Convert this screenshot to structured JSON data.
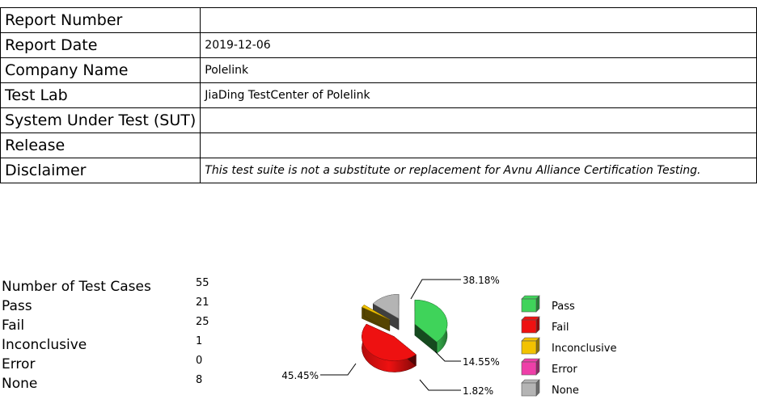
{
  "report_table": [
    {
      "label": "Report Number",
      "value": ""
    },
    {
      "label": "Report Date",
      "value": "2019-12-06"
    },
    {
      "label": "Company Name",
      "value": "Polelink"
    },
    {
      "label": "Test Lab",
      "value": "JiaDing TestCenter of Polelink"
    },
    {
      "label": "System Under Test (SUT)",
      "value": ""
    },
    {
      "label": "Release",
      "value": ""
    },
    {
      "label": "Disclaimer",
      "value": "This test suite is not a substitute or replacement for Avnu Alliance Certification Testing."
    }
  ],
  "summary": [
    {
      "label": "Number of Test Cases",
      "value": "55"
    },
    {
      "label": "Pass",
      "value": "21"
    },
    {
      "label": "Fail",
      "value": "25"
    },
    {
      "label": "Inconclusive",
      "value": "1"
    },
    {
      "label": "Error",
      "value": "0"
    },
    {
      "label": "None",
      "value": "8"
    }
  ],
  "chart_data": {
    "type": "pie",
    "slices": [
      {
        "name": "Pass",
        "value": 21,
        "label": "38.18%",
        "color": "#3fd35a"
      },
      {
        "name": "Fail",
        "value": 25,
        "label": "45.45%",
        "color": "#ee1111"
      },
      {
        "name": "Inconclusive",
        "value": 1,
        "label": "1.82%",
        "color": "#f2c200"
      },
      {
        "name": "Error",
        "value": 0,
        "label": "",
        "color": "#ee3fa8"
      },
      {
        "name": "None",
        "value": 8,
        "label": "14.55%",
        "color": "#b4b4b4"
      }
    ],
    "legend": [
      "Pass",
      "Fail",
      "Inconclusive",
      "Error",
      "None"
    ],
    "legend_position": "right"
  }
}
